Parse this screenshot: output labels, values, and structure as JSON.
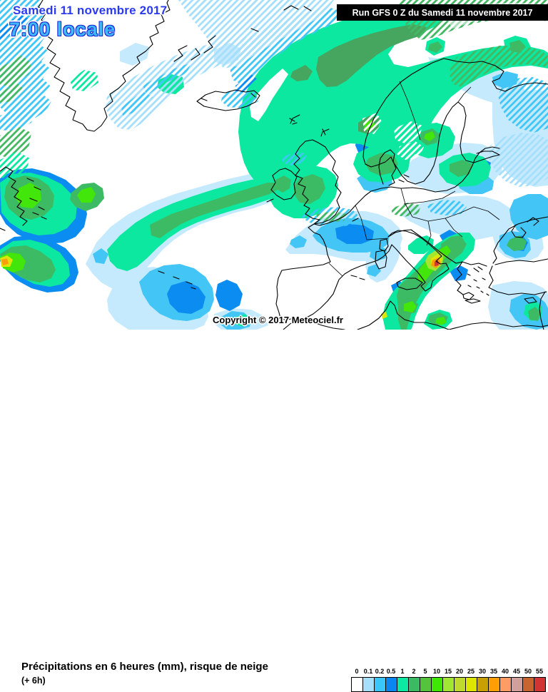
{
  "header": {
    "date": "Samedi 11 novembre 2017",
    "time": "7:00 locale",
    "run": "Run GFS 0 Z du Samedi 11 novembre 2017"
  },
  "map": {
    "copyright": "Copyright © 2017 Meteociel.fr",
    "model": "GFS",
    "region": "North Atlantic / Europe",
    "field": "6-hour precipitation (mm) with snow-risk hatching"
  },
  "legend": {
    "title": "Précipitations en 6 heures (mm), risque de neige",
    "subtitle": "(+ 6h)",
    "values": [
      "0",
      "0.1",
      "0.2",
      "0.5",
      "1",
      "2",
      "5",
      "10",
      "15",
      "20",
      "25",
      "30",
      "35",
      "40",
      "45",
      "50",
      "55"
    ],
    "colors": [
      "#FFFFFF",
      "#A6DFFB",
      "#3AC6F8",
      "#0A86F0",
      "#0BE9A2",
      "#3ABA63",
      "#55C43D",
      "#3FE705",
      "#A0E632",
      "#BFD92E",
      "#DCE600",
      "#C8A003",
      "#FF9E05",
      "#FD9C64",
      "#D2A09B",
      "#C8652F",
      "#D23434"
    ]
  }
}
